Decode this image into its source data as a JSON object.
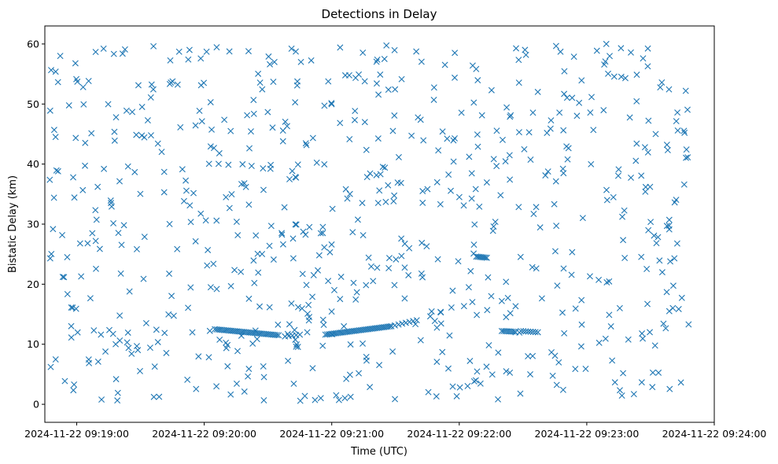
{
  "chart_data": {
    "type": "scatter",
    "title": "Detections in Delay",
    "xlabel": "Time (UTC)",
    "ylabel": "Bistatic Delay (km)",
    "marker": "x",
    "color": "#1f77b4",
    "grid": false,
    "xlim": [
      "2024-11-22 09:18:45",
      "2024-11-22 09:24:00"
    ],
    "ylim": [
      -3,
      63
    ],
    "x_ticks": [
      "2024-11-22 09:19:00",
      "2024-11-22 09:20:00",
      "2024-11-22 09:21:00",
      "2024-11-22 09:22:00",
      "2024-11-22 09:23:00",
      "2024-11-22 09:24:00"
    ],
    "y_ticks": [
      0,
      10,
      20,
      30,
      40,
      50,
      60
    ],
    "x_range_start": "2024-11-22 09:18:45",
    "x_range_end": "2024-11-22 09:24:00",
    "point_count": 820,
    "track_segments": [
      {
        "start": "2024-11-22 09:20:05",
        "end": "2024-11-22 09:20:35",
        "y_start": 12.5,
        "y_end": 11.5,
        "points": 36
      },
      {
        "start": "2024-11-22 09:20:38",
        "end": "2024-11-22 09:20:45",
        "y_start": 11.3,
        "y_end": 11.6,
        "points": 5
      },
      {
        "start": "2024-11-22 09:20:57",
        "end": "2024-11-22 09:21:28",
        "y_start": 11.6,
        "y_end": 13.0,
        "points": 38
      },
      {
        "start": "2024-11-22 09:21:28",
        "end": "2024-11-22 09:21:40",
        "y_start": 13.0,
        "y_end": 14.0,
        "points": 8
      },
      {
        "start": "2024-11-22 09:22:08",
        "end": "2024-11-22 09:22:13",
        "y_start": 24.6,
        "y_end": 24.4,
        "points": 8
      },
      {
        "start": "2024-11-22 09:22:20",
        "end": "2024-11-22 09:22:26",
        "y_start": 12.2,
        "y_end": 12.1,
        "points": 8
      },
      {
        "start": "2024-11-22 09:22:29",
        "end": "2024-11-22 09:22:37",
        "y_start": 12.2,
        "y_end": 12.0,
        "points": 8
      }
    ]
  }
}
